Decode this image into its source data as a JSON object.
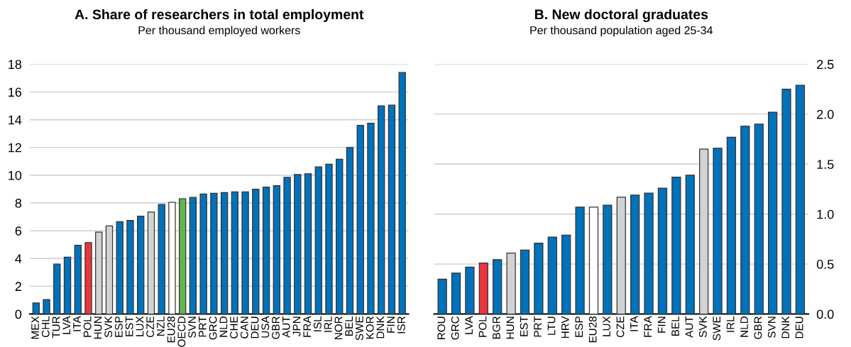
{
  "chart_data": [
    {
      "type": "bar",
      "title": "A. Share of researchers in total employment",
      "subtitle": "Per thousand employed workers",
      "categories": [
        "MEX",
        "CHL",
        "TUR",
        "LVA",
        "ITA",
        "POL",
        "HUN",
        "SVK",
        "ESP",
        "EST",
        "LUX",
        "CZE",
        "NZL",
        "EU28",
        "OECD",
        "SVN",
        "PRT",
        "GRC",
        "NLD",
        "CHE",
        "CAN",
        "DEU",
        "USA",
        "GBR",
        "AUT",
        "JPN",
        "FRA",
        "ISL",
        "IRL",
        "NOR",
        "BEL",
        "SWE",
        "KOR",
        "DNK",
        "FIN",
        "ISR"
      ],
      "values": [
        0.8,
        1.05,
        3.6,
        4.1,
        4.95,
        5.15,
        5.9,
        6.35,
        6.65,
        6.75,
        7.05,
        7.35,
        7.9,
        8.05,
        8.3,
        8.4,
        8.65,
        8.7,
        8.75,
        8.8,
        8.8,
        9.0,
        9.15,
        9.25,
        9.85,
        10.05,
        10.1,
        10.6,
        10.8,
        11.15,
        12.0,
        13.6,
        13.75,
        15.0,
        15.05,
        17.4
      ],
      "colors": [
        "#0072bb",
        "#0072bb",
        "#0072bb",
        "#0072bb",
        "#0072bb",
        "#e8363f",
        "#d0d2d4",
        "#d0d2d4",
        "#0072bb",
        "#0072bb",
        "#0072bb",
        "#d0d2d4",
        "#0072bb",
        "#ffffff",
        "#63b54f",
        "#0072bb",
        "#0072bb",
        "#0072bb",
        "#0072bb",
        "#0072bb",
        "#0072bb",
        "#0072bb",
        "#0072bb",
        "#0072bb",
        "#0072bb",
        "#0072bb",
        "#0072bb",
        "#0072bb",
        "#0072bb",
        "#0072bb",
        "#0072bb",
        "#0072bb",
        "#0072bb",
        "#0072bb",
        "#0072bb",
        "#0072bb"
      ],
      "ylim": [
        0,
        18
      ],
      "yticks": [
        0,
        2,
        4,
        6,
        8,
        10,
        12,
        14,
        16,
        18
      ],
      "grid": "y"
    },
    {
      "type": "bar",
      "title": "B. New doctoral graduates",
      "subtitle": "Per thousand population aged 25-34",
      "categories": [
        "ROU",
        "GRC",
        "LVA",
        "POL",
        "BGR",
        "HUN",
        "EST",
        "PRT",
        "LTU",
        "HRV",
        "ESP",
        "EU28",
        "LUX",
        "CZE",
        "ITA",
        "FRA",
        "FIN",
        "BEL",
        "AUT",
        "SVK",
        "SWE",
        "IRL",
        "NLD",
        "GBR",
        "SVN",
        "DNK",
        "DEU"
      ],
      "values": [
        0.35,
        0.41,
        0.47,
        0.51,
        0.545,
        0.61,
        0.64,
        0.71,
        0.77,
        0.79,
        1.07,
        1.07,
        1.09,
        1.17,
        1.19,
        1.21,
        1.26,
        1.37,
        1.39,
        1.65,
        1.66,
        1.77,
        1.88,
        1.9,
        2.02,
        2.25,
        2.29
      ],
      "colors": [
        "#0072bb",
        "#0072bb",
        "#0072bb",
        "#e8363f",
        "#0072bb",
        "#d0d2d4",
        "#0072bb",
        "#0072bb",
        "#0072bb",
        "#0072bb",
        "#0072bb",
        "#ffffff",
        "#0072bb",
        "#d0d2d4",
        "#0072bb",
        "#0072bb",
        "#0072bb",
        "#0072bb",
        "#0072bb",
        "#d0d2d4",
        "#0072bb",
        "#0072bb",
        "#0072bb",
        "#0072bb",
        "#0072bb",
        "#0072bb",
        "#0072bb"
      ],
      "ylim": [
        0,
        2.5
      ],
      "yticks": [
        {
          "value": 0,
          "label": "0.0"
        },
        {
          "value": 0.5,
          "label": "0.5"
        },
        {
          "value": 1,
          "label": "1.0"
        },
        {
          "value": 1.5,
          "label": "1.5"
        },
        {
          "value": 2,
          "label": "2.0"
        },
        {
          "value": 2.5,
          "label": "2.5"
        }
      ],
      "grid": "y"
    }
  ]
}
